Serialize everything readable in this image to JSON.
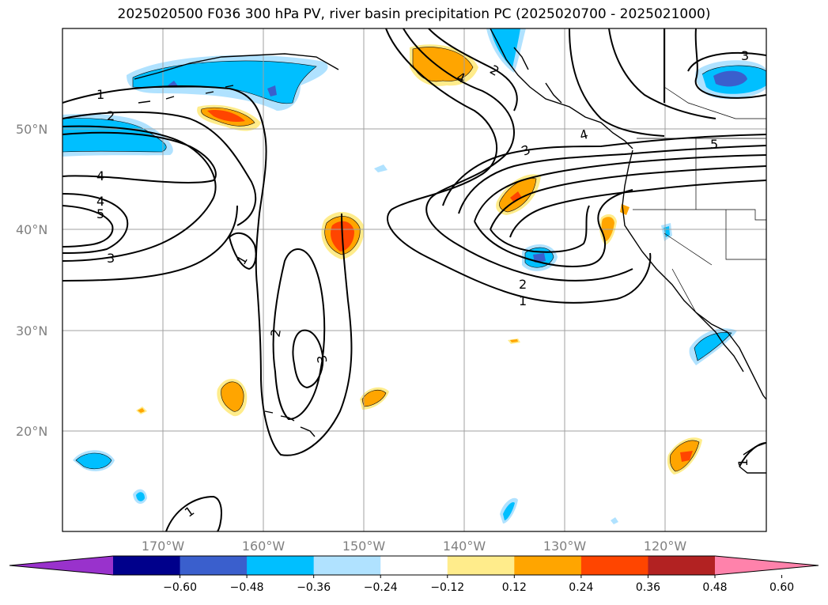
{
  "title": "2025020500 F036 300 hPa PV, river basin precipitation PC (2025020700 - 2025021000)",
  "lat_labels": [
    "50°N",
    "40°N",
    "30°N",
    "20°N"
  ],
  "lon_labels": [
    "170°W",
    "160°W",
    "150°W",
    "140°W",
    "130°W",
    "120°W"
  ],
  "contour_labels": [
    "1",
    "2",
    "4",
    "4",
    "5",
    "3",
    "1",
    "2",
    "3",
    "4",
    "2",
    "3",
    "2",
    "1",
    "4",
    "5",
    "3",
    "1",
    "1"
  ],
  "colorbar": {
    "ticks": [
      "−0.60",
      "−0.48",
      "−0.36",
      "−0.24",
      "−0.12",
      "0.12",
      "0.24",
      "0.36",
      "0.48",
      "0.60"
    ],
    "colors": [
      "#9932cc",
      "#00008b",
      "#3a5fcd",
      "#00bfff",
      "#b0e2ff",
      "#ffffff",
      "#ffec8b",
      "#ffa500",
      "#ff4500",
      "#b22222",
      "#ff82ab"
    ]
  },
  "map_data": {
    "projection": "PlateCarree",
    "extent_lon": [
      -180,
      -110
    ],
    "extent_lat": [
      10,
      60
    ],
    "field": "300 hPa PV contours (PVU) with shaded precipitation PC regression",
    "grid": true
  }
}
